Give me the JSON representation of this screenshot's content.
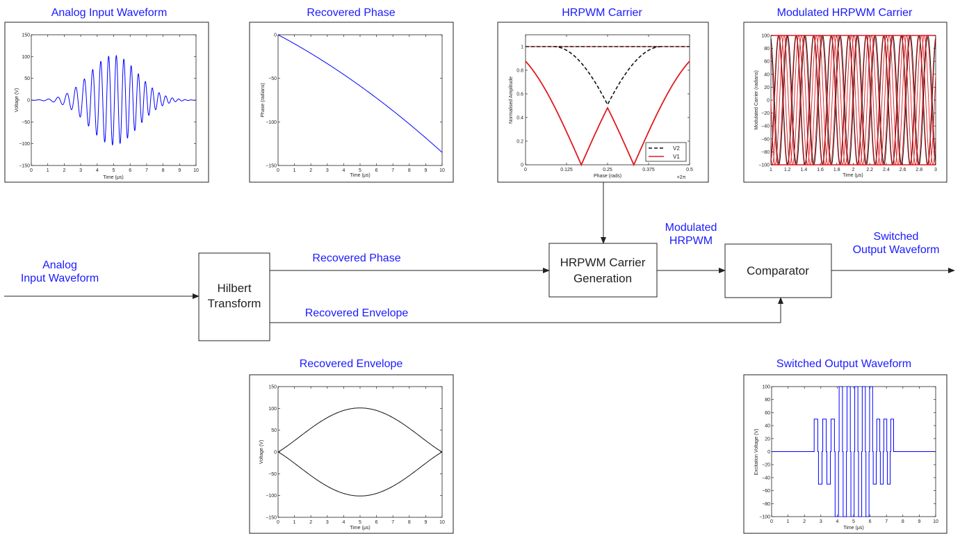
{
  "plots": {
    "analog_input": {
      "title": "Analog Input Waveform",
      "xlabel": "Time (μs)",
      "ylabel": "Voltage (V)",
      "x_ticks": [
        "0",
        "1",
        "2",
        "3",
        "4",
        "5",
        "6",
        "7",
        "8",
        "9",
        "10"
      ],
      "y_ticks": [
        "150",
        "100",
        "50",
        "0",
        "−50",
        "−100",
        "−150"
      ]
    },
    "recovered_phase": {
      "title": "Recovered Phase",
      "xlabel": "Time (μs)",
      "ylabel": "Phase (radians)",
      "x_ticks": [
        "0",
        "1",
        "2",
        "3",
        "4",
        "5",
        "6",
        "7",
        "8",
        "9",
        "10"
      ],
      "y_ticks": [
        "0",
        "−50",
        "−100",
        "−150"
      ]
    },
    "hrpwm_carrier": {
      "title": "HRPWM Carrier",
      "xlabel": "Phase (rads)",
      "ylabel": "Normalised Amplitude",
      "x_multiplier": "×2π",
      "x_ticks": [
        "0",
        "0.125",
        "0.25",
        "0.375",
        "0.5"
      ],
      "y_ticks": [
        "1",
        "0.8",
        "0.6",
        "0.4",
        "0.2",
        "0"
      ],
      "legend": [
        "V2",
        "V1"
      ]
    },
    "modulated_carrier": {
      "title": "Modulated HRPWM Carrier",
      "xlabel": "Time (μs)",
      "ylabel": "Modulated Carrier (radians)",
      "x_ticks": [
        "1",
        "1.2",
        "1.4",
        "1.6",
        "1.8",
        "2",
        "2.2",
        "2.4",
        "2.6",
        "2.8",
        "3"
      ],
      "y_ticks": [
        "100",
        "80",
        "60",
        "40",
        "20",
        "0",
        "−20",
        "−40",
        "−60",
        "−80",
        "−100"
      ]
    },
    "recovered_envelope": {
      "title": "Recovered Envelope",
      "xlabel": "Time (μs)",
      "ylabel": "Voltage (V)",
      "x_ticks": [
        "0",
        "1",
        "2",
        "3",
        "4",
        "5",
        "6",
        "7",
        "8",
        "9",
        "10"
      ],
      "y_ticks": [
        "150",
        "100",
        "50",
        "0",
        "−50",
        "−100",
        "−150"
      ]
    },
    "switched_output": {
      "title": "Switched Output Waveform",
      "xlabel": "Time (μs)",
      "ylabel": "Excitation Voltage (V)",
      "x_ticks": [
        "0",
        "1",
        "2",
        "3",
        "4",
        "5",
        "6",
        "7",
        "8",
        "9",
        "10"
      ],
      "y_ticks": [
        "100",
        "80",
        "60",
        "40",
        "20",
        "0",
        "−20",
        "−40",
        "−60",
        "−80",
        "−100"
      ]
    }
  },
  "blocks": {
    "hilbert": [
      "Hilbert",
      "Transform"
    ],
    "carrier_gen": [
      "HRPWM Carrier",
      "Generation"
    ],
    "comparator": "Comparator"
  },
  "flow_labels": {
    "analog_input": [
      "Analog",
      "Input Waveform"
    ],
    "recovered_phase": "Recovered Phase",
    "recovered_envelope": "Recovered Envelope",
    "modulated": [
      "Modulated",
      "HRPWM"
    ],
    "switched_output": [
      "Switched",
      "Output Waveform"
    ]
  },
  "colors": {
    "blue_trace": "#0000ff",
    "red_trace": "#e0191e",
    "label_blue": "#1a1aff",
    "ink": "#222222"
  }
}
